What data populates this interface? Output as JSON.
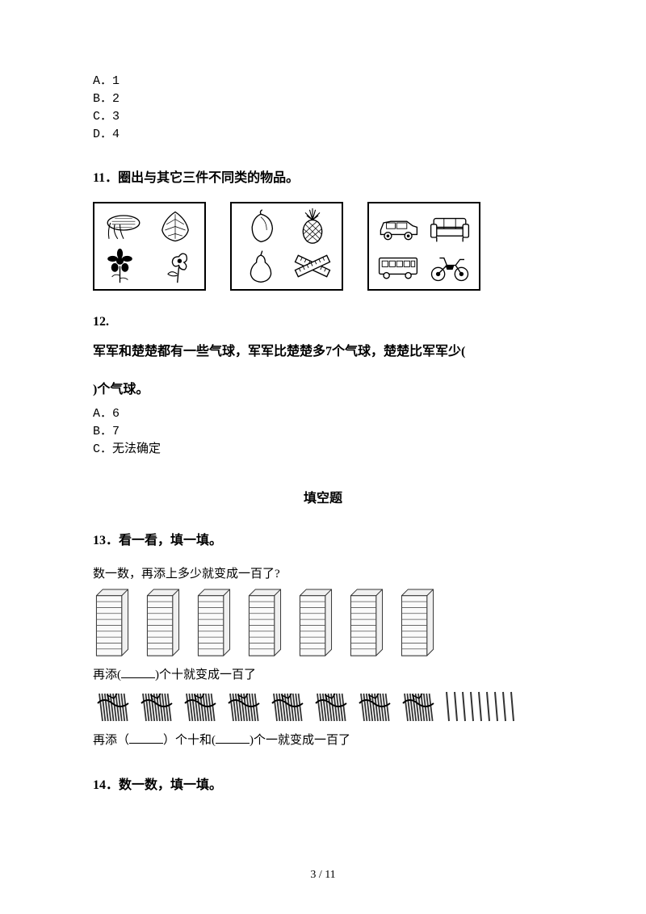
{
  "options_q10": {
    "a": "A．1",
    "b": "B．2",
    "c": "C．3",
    "d": "D．4"
  },
  "q11": {
    "title": "11．圈出与其它三件不同类的物品。",
    "boxes": [
      {
        "items": [
          "corn-icon",
          "leaf-icon",
          "flower-icon",
          "flower2-icon"
        ]
      },
      {
        "items": [
          "mango-icon",
          "pineapple-icon",
          "pear-icon",
          "rulers-icon"
        ]
      },
      {
        "items": [
          "car-icon",
          "sofa-icon",
          "bus-icon",
          "motorcycle-icon"
        ]
      }
    ]
  },
  "q12": {
    "number": "12.",
    "text1": "军军和楚楚都有一些气球，军军比楚楚多7个气球，楚楚比军军少(",
    "text2": "    )个气球。",
    "options": {
      "a": "A．6",
      "b": "B．7",
      "c": "C．无法确定"
    }
  },
  "fillSection": "填空题",
  "q13": {
    "title": "13．看一看，填一填。",
    "sub": "数一数，再添上多少就变成一百了?",
    "blockCount": 7,
    "fill1_prefix": "再添(",
    "fill1_suffix": ")个十就变成一百了",
    "bundleCount": 8,
    "singleCount": 9,
    "fill2_prefix": "再添（",
    "fill2_mid": "）个十和(",
    "fill2_suffix": ")个一就变成一百了"
  },
  "q14": {
    "title": "14．数一数，填一填。"
  },
  "pageNumber": "3 / 11",
  "colors": {
    "bg": "#ffffff",
    "text": "#000000",
    "border": "#000000"
  }
}
